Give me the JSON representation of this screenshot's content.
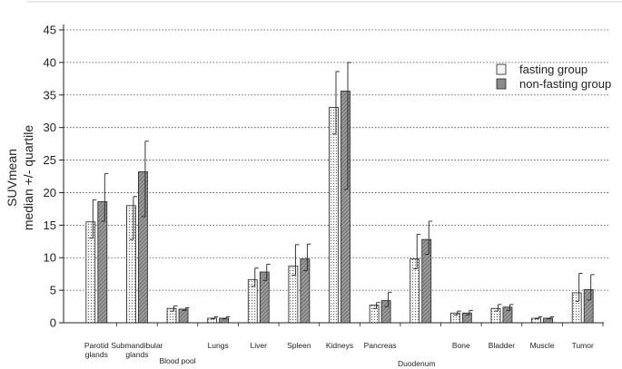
{
  "chart_data": {
    "type": "bar",
    "ylabel_line1": "SUVmean",
    "ylabel_line2": "median +/- quartile",
    "ylim": [
      0,
      45
    ],
    "yticks": [
      0,
      5,
      10,
      15,
      20,
      25,
      30,
      35,
      40,
      45
    ],
    "grid": "horizontal-dotted",
    "legend_placement": "top-right",
    "categories": [
      {
        "lines": [
          "Parotid",
          "glands"
        ],
        "row": "upper"
      },
      {
        "lines": [
          "Submandibular",
          "glands"
        ],
        "row": "upper"
      },
      {
        "lines": [
          "Blood pool"
        ],
        "row": "lower"
      },
      {
        "lines": [
          "Lungs"
        ],
        "row": "upper"
      },
      {
        "lines": [
          "Liver"
        ],
        "row": "upper"
      },
      {
        "lines": [
          "Spleen"
        ],
        "row": "upper"
      },
      {
        "lines": [
          "Kidneys"
        ],
        "row": "upper"
      },
      {
        "lines": [
          "Pancreas"
        ],
        "row": "upper"
      },
      {
        "lines": [
          "Duodenum"
        ],
        "row": "bottom"
      },
      {
        "lines": [
          "Bone"
        ],
        "row": "upper"
      },
      {
        "lines": [
          "Bladder"
        ],
        "row": "upper"
      },
      {
        "lines": [
          "Muscle"
        ],
        "row": "upper"
      },
      {
        "lines": [
          "Tumor"
        ],
        "row": "upper"
      }
    ],
    "series": [
      {
        "name": "fasting group",
        "fill": "#f2f2f2",
        "pattern": "dots",
        "values": [
          15.5,
          18.0,
          2.2,
          0.7,
          6.6,
          8.7,
          33.1,
          2.7,
          9.8,
          1.5,
          2.2,
          0.7,
          4.6
        ],
        "lower": [
          13.0,
          12.8,
          1.8,
          0.6,
          5.6,
          7.3,
          29.0,
          2.2,
          8.3,
          1.2,
          1.8,
          0.6,
          3.3
        ],
        "upper": [
          18.9,
          19.4,
          2.6,
          0.9,
          8.4,
          12.0,
          38.6,
          3.1,
          13.6,
          1.8,
          2.8,
          0.9,
          7.6
        ]
      },
      {
        "name": "non-fasting group",
        "fill": "#8c8c8c",
        "pattern": "diagonal",
        "values": [
          18.6,
          23.2,
          2.1,
          0.7,
          7.8,
          9.8,
          35.6,
          3.4,
          12.8,
          1.5,
          2.4,
          0.7,
          5.1
        ],
        "lower": [
          15.6,
          16.3,
          1.9,
          0.6,
          6.5,
          8.0,
          20.5,
          2.5,
          10.5,
          1.2,
          1.9,
          0.6,
          3.5
        ],
        "upper": [
          22.9,
          27.9,
          2.3,
          0.9,
          9.0,
          12.1,
          40.0,
          4.7,
          15.6,
          1.9,
          2.8,
          0.9,
          7.4
        ]
      }
    ]
  }
}
